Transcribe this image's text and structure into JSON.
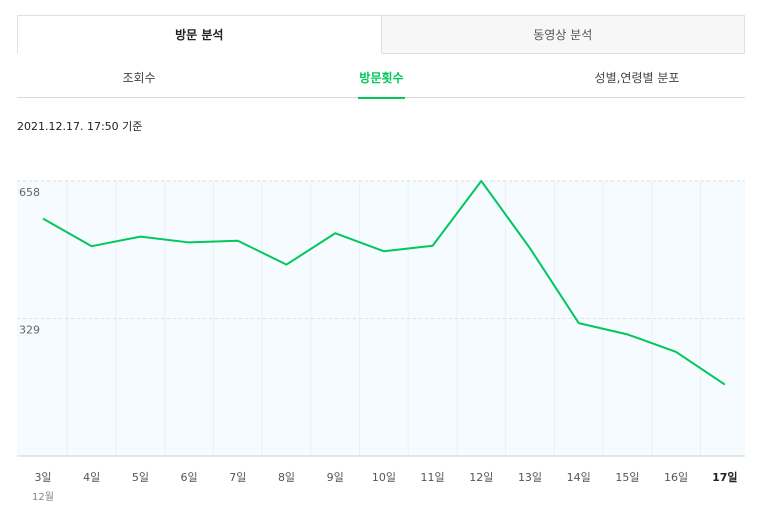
{
  "top_tabs": [
    {
      "label": "방문 분석",
      "active": true
    },
    {
      "label": "동영상 분석",
      "active": false
    }
  ],
  "sub_tabs": [
    {
      "label": "조회수",
      "active": false
    },
    {
      "label": "방문횟수",
      "active": true
    },
    {
      "label": "성별,연령별 분포",
      "active": false
    }
  ],
  "timestamp": "2021.12.17. 17:50 기준",
  "colors": {
    "accent": "#03c75a",
    "plot_bg": "#f5fbff"
  },
  "chart_data": {
    "type": "line",
    "title": "",
    "xlabel": "",
    "ylabel": "",
    "x_sublabel": "12월",
    "categories": [
      "3일",
      "4일",
      "5일",
      "6일",
      "7일",
      "8일",
      "9일",
      "10일",
      "11일",
      "12일",
      "13일",
      "14일",
      "15일",
      "16일",
      "17일"
    ],
    "highlight_category": "17일",
    "y_ticks": [
      329,
      658
    ],
    "ylim": [
      0,
      658
    ],
    "grid": true,
    "series": [
      {
        "values": [
          568,
          502,
          525,
          511,
          515,
          458,
          533,
          490,
          503,
          658,
          497,
          318,
          291,
          249,
          171
        ]
      }
    ]
  }
}
